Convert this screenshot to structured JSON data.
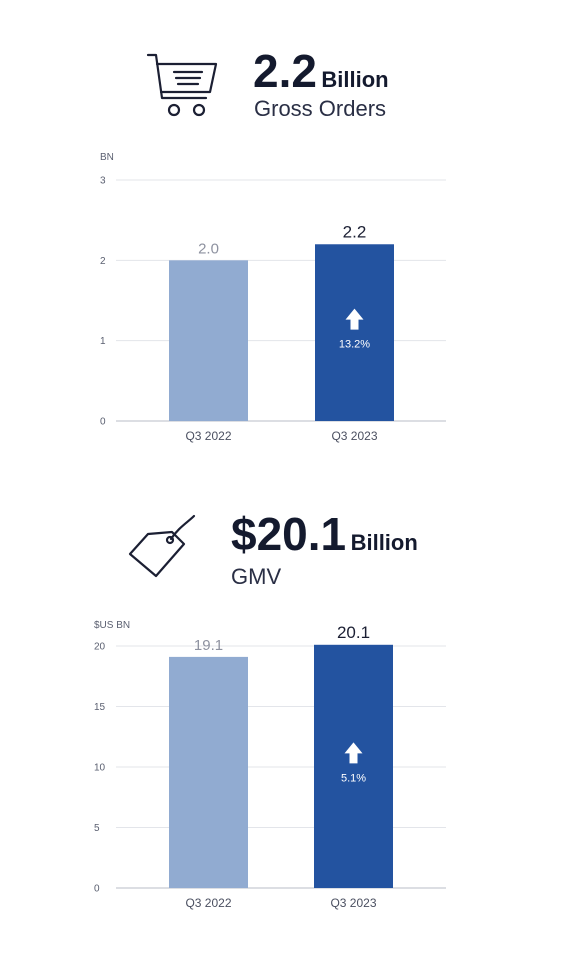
{
  "colors": {
    "prev_bar": "#91abd1",
    "curr_bar": "#2353a0",
    "grid": "#e3e5ea",
    "axis": "#c8cbd2",
    "arrow": "#ffffff"
  },
  "orders": {
    "icon": "shopping-cart-icon",
    "value": "2.2",
    "unit": "Billion",
    "label": "Gross Orders",
    "chart_data": {
      "type": "bar",
      "unit_label": "BN",
      "categories": [
        "Q3 2022",
        "Q3 2023"
      ],
      "values": [
        2.0,
        2.2
      ],
      "value_labels": [
        "2.0",
        "2.2"
      ],
      "ylim": [
        0,
        3
      ],
      "yticks": [
        "0",
        "1",
        "2",
        "3"
      ],
      "growth_label": "13.2%",
      "growth_icon": "up-arrow-icon",
      "grid": true
    }
  },
  "gmv": {
    "icon": "price-tag-icon",
    "value": "$20.1",
    "unit": "Billion",
    "label": "GMV",
    "chart_data": {
      "type": "bar",
      "unit_label": "$US BN",
      "categories": [
        "Q3 2022",
        "Q3 2023"
      ],
      "values": [
        19.1,
        20.1
      ],
      "value_labels": [
        "19.1",
        "20.1"
      ],
      "ylim": [
        0,
        20
      ],
      "yticks": [
        "0",
        "5",
        "10",
        "15",
        "20"
      ],
      "growth_label": "5.1%",
      "growth_icon": "up-arrow-icon",
      "grid": true
    }
  }
}
